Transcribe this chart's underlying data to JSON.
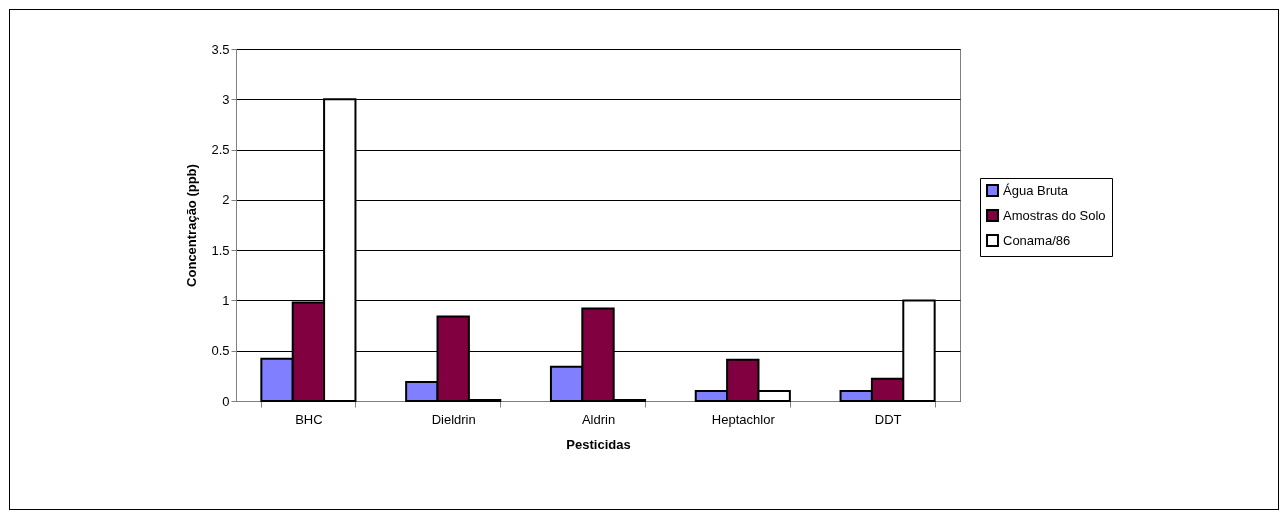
{
  "chart_data": {
    "type": "bar",
    "xlabel": "Pesticidas",
    "ylabel": "Concentração (ppb)",
    "categories": [
      "BHC",
      "Dieldrin",
      "Aldrin",
      "Heptachlor",
      "DDT"
    ],
    "series": [
      {
        "name": "Água Bruta",
        "color": "#8080ff",
        "values": [
          0.42,
          0.19,
          0.34,
          0.1,
          0.1
        ]
      },
      {
        "name": "Amostras do Solo",
        "color": "#800040",
        "values": [
          0.98,
          0.84,
          0.92,
          0.41,
          0.22
        ]
      },
      {
        "name": "Conama/86",
        "color": "#ffffff",
        "values": [
          3,
          0.01,
          0.01,
          0.1,
          1
        ]
      }
    ],
    "ylim": [
      0,
      3.5
    ],
    "yticks": [
      0,
      0.5,
      1,
      1.5,
      2,
      2.5,
      3,
      3.5
    ],
    "grid": "y",
    "legend": "right"
  }
}
